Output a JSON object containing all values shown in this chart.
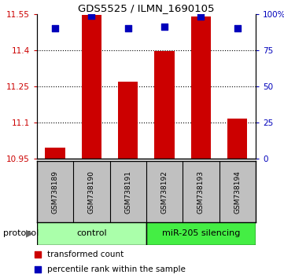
{
  "title": "GDS5525 / ILMN_1690105",
  "samples": [
    "GSM738189",
    "GSM738190",
    "GSM738191",
    "GSM738192",
    "GSM738193",
    "GSM738194"
  ],
  "red_values": [
    10.995,
    11.545,
    11.27,
    11.395,
    11.54,
    11.115
  ],
  "blue_values": [
    90,
    99,
    90,
    91,
    98,
    90
  ],
  "ylim_left": [
    10.95,
    11.55
  ],
  "ylim_right": [
    0,
    100
  ],
  "yticks_left": [
    10.95,
    11.1,
    11.25,
    11.4,
    11.55
  ],
  "yticks_right": [
    0,
    25,
    50,
    75,
    100
  ],
  "ytick_labels_left": [
    "10.95",
    "11.1",
    "11.25",
    "11.4",
    "11.55"
  ],
  "ytick_labels_right": [
    "0",
    "25",
    "50",
    "75",
    "100%"
  ],
  "control_label": "control",
  "mir_label": "miR-205 silencing",
  "control_color": "#AAFFAA",
  "mir_color": "#44EE44",
  "protocol_label": "protocol",
  "bar_color": "#CC0000",
  "dot_color": "#0000BB",
  "bar_width": 0.55,
  "dot_size": 35,
  "bg_color": "#FFFFFF",
  "plot_bg": "#FFFFFF",
  "grid_color": "#000000",
  "legend_red": "transformed count",
  "legend_blue": "percentile rank within the sample",
  "sample_box_color": "#C0C0C0",
  "title_fontsize": 9.5,
  "tick_fontsize": 7.5,
  "sample_fontsize": 6.5,
  "protocol_fontsize": 8,
  "legend_fontsize": 7.5
}
